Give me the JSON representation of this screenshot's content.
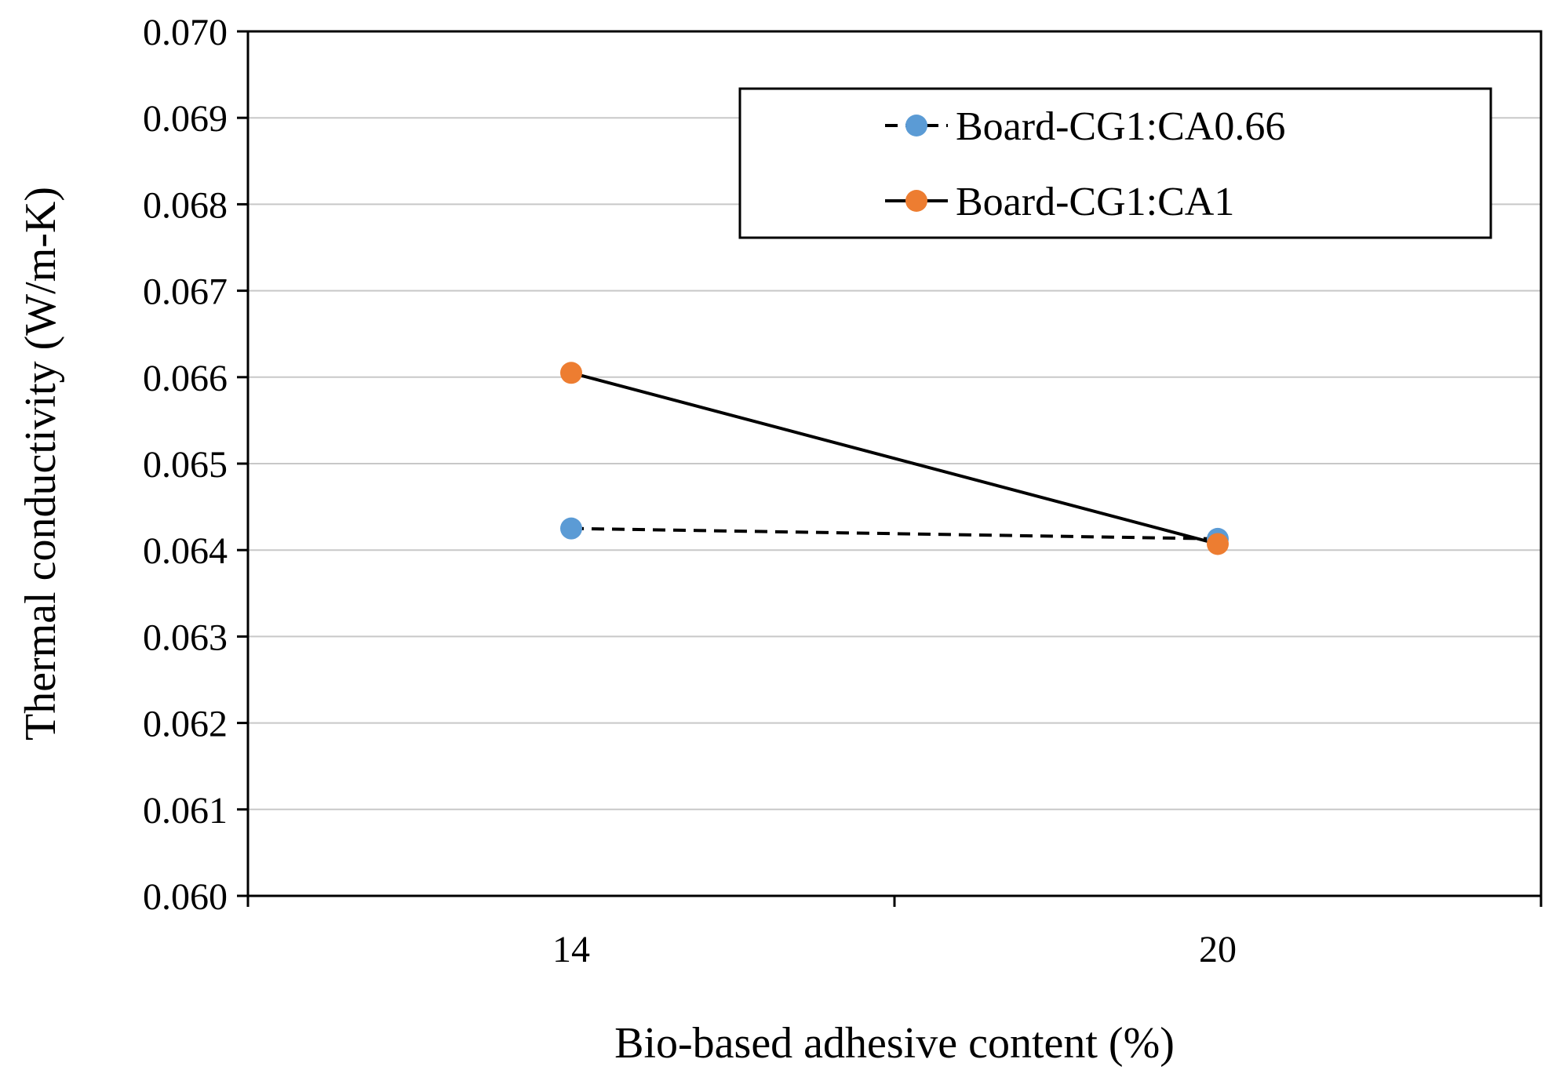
{
  "chart_data": {
    "type": "line",
    "title": "",
    "xlabel": "Bio-based adhesive content (%)",
    "ylabel": "Thermal conductivity (W/m-K)",
    "categories": [
      "14",
      "20"
    ],
    "ylim": [
      0.06,
      0.07
    ],
    "yticks": [
      "0.060",
      "0.061",
      "0.062",
      "0.063",
      "0.064",
      "0.065",
      "0.066",
      "0.067",
      "0.068",
      "0.069",
      "0.070"
    ],
    "grid": "horizontal",
    "legend_position": "top-right",
    "series": [
      {
        "name": "Board-CG1:CA0.66",
        "values": [
          0.06425,
          0.06413
        ],
        "marker_color": "#5B9BD5",
        "line_color": "#000000",
        "line_style": "dashed"
      },
      {
        "name": "Board-CG1:CA1",
        "values": [
          0.06605,
          0.06407
        ],
        "marker_color": "#ED7D31",
        "line_color": "#000000",
        "line_style": "solid"
      }
    ]
  }
}
